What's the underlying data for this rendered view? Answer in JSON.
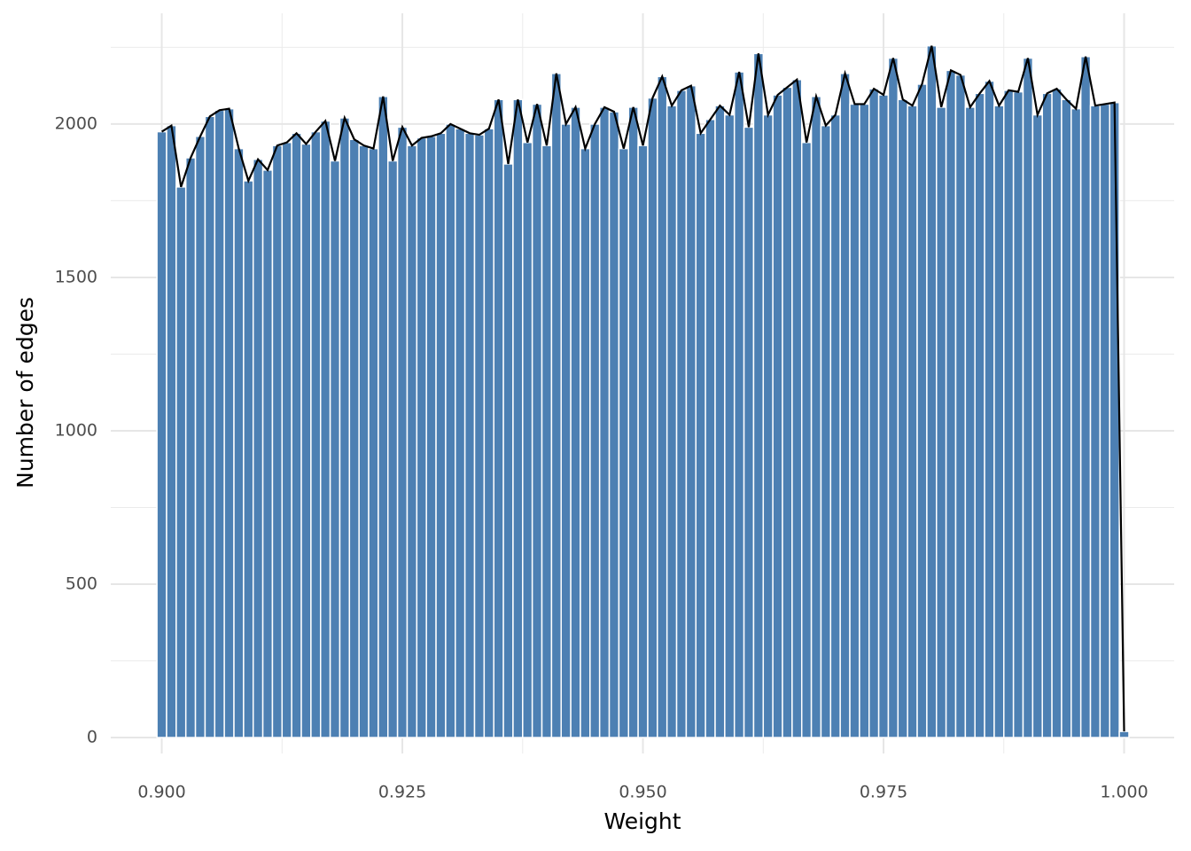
{
  "chart_data": {
    "type": "histogram",
    "x_label": "Weight",
    "y_label": "Number of edges",
    "bins": [
      0.8995,
      0.9005,
      0.9015,
      0.9025,
      0.9035,
      0.9045,
      0.9055,
      0.9065,
      0.9075,
      0.9085,
      0.9095,
      0.9105,
      0.9115,
      0.9125,
      0.9135,
      0.9145,
      0.9155,
      0.9165,
      0.9175,
      0.9185,
      0.9195,
      0.9205,
      0.9215,
      0.9225,
      0.9235,
      0.9245,
      0.9255,
      0.9265,
      0.9275,
      0.9285,
      0.9295,
      0.9305,
      0.9315,
      0.9325,
      0.9335,
      0.9345,
      0.9355,
      0.9365,
      0.9375,
      0.9385,
      0.9395,
      0.9405,
      0.9415,
      0.9425,
      0.9435,
      0.9445,
      0.9455,
      0.9465,
      0.9475,
      0.9485,
      0.9495,
      0.9505,
      0.9515,
      0.9525,
      0.9535,
      0.9545,
      0.9555,
      0.9565,
      0.9575,
      0.9585,
      0.9595,
      0.9605,
      0.9615,
      0.9625,
      0.9635,
      0.9645,
      0.9655,
      0.9665,
      0.9675,
      0.9685,
      0.9695,
      0.9705,
      0.9715,
      0.9725,
      0.9735,
      0.9745,
      0.9755,
      0.9765,
      0.9775,
      0.9785,
      0.9795,
      0.9805,
      0.9815,
      0.9825,
      0.9835,
      0.9845,
      0.9855,
      0.9865,
      0.9875,
      0.9885,
      0.9895,
      0.9905,
      0.9915,
      0.9925,
      0.9935,
      0.9945,
      0.9955,
      0.9965,
      0.9975,
      0.9985,
      0.9995,
      1.0005
    ],
    "values": [
      1975,
      1995,
      1795,
      1890,
      1960,
      2025,
      2045,
      2050,
      1920,
      1815,
      1885,
      1850,
      1930,
      1940,
      1970,
      1935,
      1975,
      2010,
      1880,
      2020,
      1950,
      1930,
      1920,
      2090,
      1880,
      1990,
      1930,
      1955,
      1960,
      1970,
      2000,
      1985,
      1970,
      1965,
      1985,
      2080,
      1870,
      2080,
      1940,
      2065,
      1930,
      2165,
      2000,
      2055,
      1920,
      2000,
      2055,
      2040,
      1920,
      2055,
      1930,
      2085,
      2155,
      2060,
      2110,
      2125,
      1970,
      2015,
      2060,
      2030,
      2170,
      1990,
      2230,
      2030,
      2095,
      2120,
      2145,
      1940,
      2090,
      1995,
      2030,
      2165,
      2065,
      2065,
      2115,
      2095,
      2215,
      2080,
      2060,
      2130,
      2255,
      2055,
      2175,
      2160,
      2055,
      2100,
      2140,
      2060,
      2110,
      2105,
      2215,
      2030,
      2100,
      2115,
      2080,
      2050,
      2220,
      2060,
      2065,
      2070,
      20
    ],
    "color": "#4d80b3",
    "line_color": "#000000",
    "xlim": [
      0.8947,
      1.0052
    ],
    "ylim": [
      -52,
      2361
    ],
    "xticks": [
      {
        "value": 0.9,
        "label": "0.900"
      },
      {
        "value": 0.925,
        "label": "0.925"
      },
      {
        "value": 0.95,
        "label": "0.950"
      },
      {
        "value": 0.975,
        "label": "0.975"
      },
      {
        "value": 1.0,
        "label": "1.000"
      }
    ],
    "yticks": [
      0,
      500,
      1000,
      1500,
      2000
    ],
    "grid": true
  }
}
